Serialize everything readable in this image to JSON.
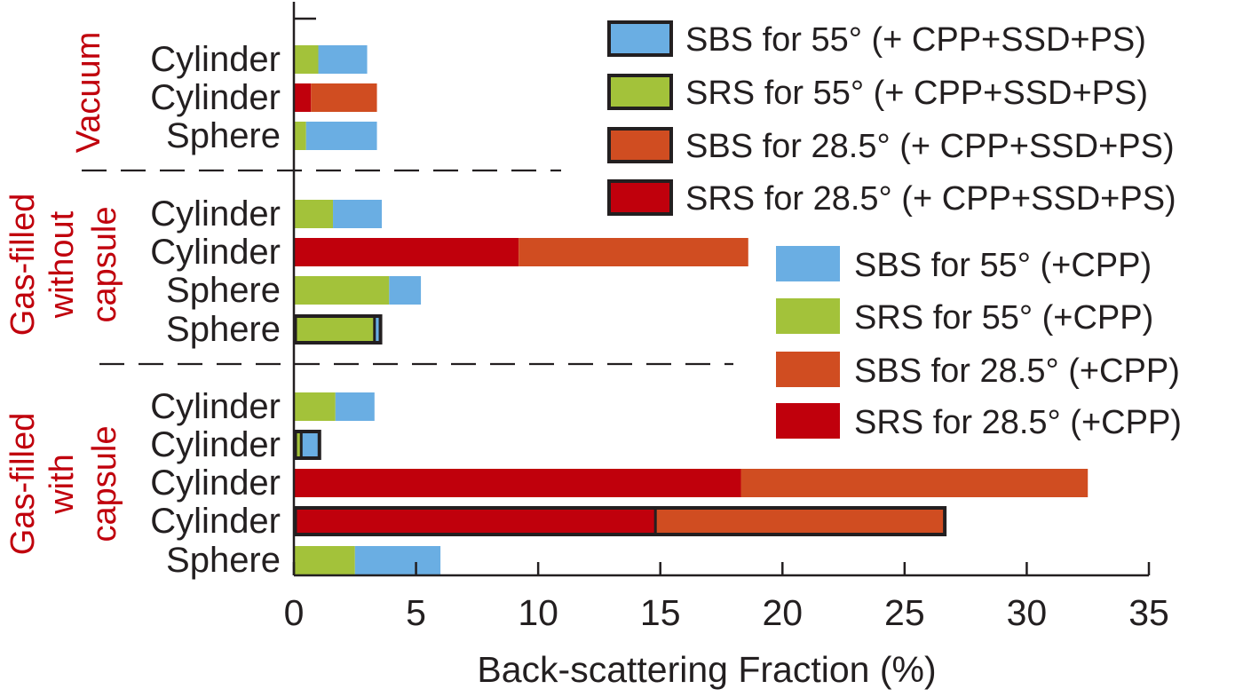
{
  "chart_data": {
    "type": "bar",
    "orientation": "horizontal",
    "stacked": true,
    "xlabel": "Back-scattering Fraction (%)",
    "xlim": [
      0,
      35
    ],
    "xticks": [
      "0",
      "5",
      "10",
      "15",
      "20",
      "25",
      "30",
      "35"
    ],
    "grid": false,
    "colors": {
      "sbs55": "#6aaee3",
      "srs55": "#a3c23a",
      "sbs285": "#d04d21",
      "srs285": "#c0000c",
      "outline": "#231f20",
      "group_label": "#c0000c",
      "separator": "#231f20"
    },
    "groups": [
      {
        "label_lines": [
          "Vacuum"
        ]
      },
      {
        "label_lines": [
          "Gas-filled",
          "without",
          "capsule"
        ]
      },
      {
        "label_lines": [
          "Gas-filled",
          "with",
          "capsule"
        ]
      }
    ],
    "rows": [
      {
        "label": "Cylinder",
        "group": 0,
        "angle": "55",
        "outlined": false,
        "srs": 1.0,
        "sbs": 2.0
      },
      {
        "label": "Cylinder",
        "group": 0,
        "angle": "28.5",
        "outlined": false,
        "srs": 0.7,
        "sbs": 2.7
      },
      {
        "label": "Sphere",
        "group": 0,
        "angle": "55",
        "outlined": false,
        "srs": 0.5,
        "sbs": 2.9
      },
      {
        "label": "Cylinder",
        "group": 1,
        "angle": "55",
        "outlined": false,
        "srs": 1.6,
        "sbs": 2.0
      },
      {
        "label": "Cylinder",
        "group": 1,
        "angle": "28.5",
        "outlined": false,
        "srs": 9.2,
        "sbs": 9.4
      },
      {
        "label": "Sphere",
        "group": 1,
        "angle": "55",
        "outlined": false,
        "srs": 3.9,
        "sbs": 1.3
      },
      {
        "label": "Sphere",
        "group": 1,
        "angle": "55",
        "outlined": true,
        "srs": 3.3,
        "sbs": 0.3
      },
      {
        "label": "Cylinder",
        "group": 2,
        "angle": "55",
        "outlined": false,
        "srs": 1.7,
        "sbs": 1.6
      },
      {
        "label": "Cylinder",
        "group": 2,
        "angle": "55",
        "outlined": true,
        "srs": 0.3,
        "sbs": 0.8
      },
      {
        "label": "Cylinder",
        "group": 2,
        "angle": "28.5",
        "outlined": false,
        "srs": 18.3,
        "sbs": 14.2
      },
      {
        "label": "Cylinder",
        "group": 2,
        "angle": "28.5",
        "outlined": true,
        "srs": 14.8,
        "sbs": 11.9
      },
      {
        "label": "Sphere",
        "group": 2,
        "angle": "55",
        "outlined": false,
        "srs": 2.5,
        "sbs": 3.5
      }
    ],
    "legend_outlined": [
      {
        "label": "SBS for 55°  (+ CPP+SSD+PS)",
        "color_key": "sbs55"
      },
      {
        "label": "SRS for 55°  (+ CPP+SSD+PS)",
        "color_key": "srs55"
      },
      {
        "label": "SBS for 28.5°  (+ CPP+SSD+PS)",
        "color_key": "sbs285"
      },
      {
        "label": "SRS for 28.5°  (+ CPP+SSD+PS)",
        "color_key": "srs285"
      }
    ],
    "legend_plain": [
      {
        "label": "SBS for 55°  (+CPP)",
        "color_key": "sbs55"
      },
      {
        "label": "SRS for 55°  (+CPP)",
        "color_key": "srs55"
      },
      {
        "label": "SBS for 28.5° (+CPP)",
        "color_key": "sbs285"
      },
      {
        "label": "SRS for 28.5° (+CPP)",
        "color_key": "srs285"
      }
    ]
  }
}
